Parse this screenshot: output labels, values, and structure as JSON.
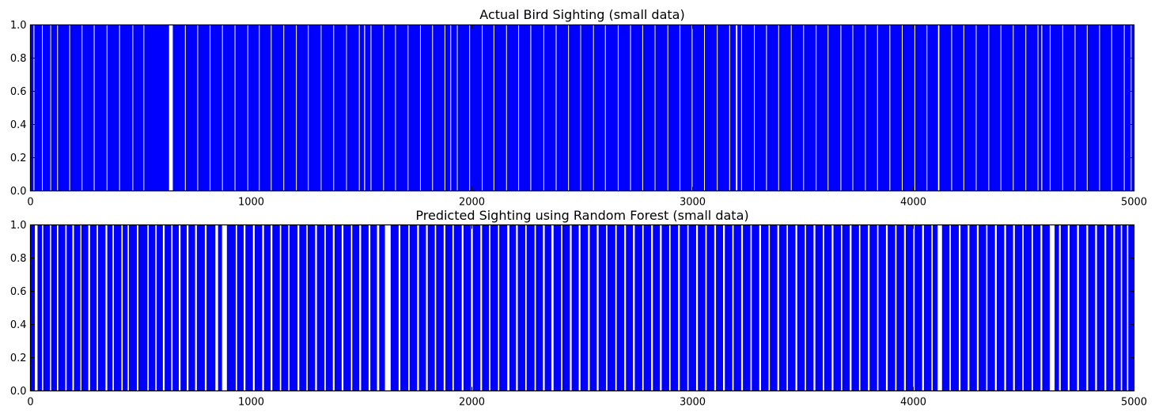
{
  "chart_data": [
    {
      "type": "bar",
      "title": "Actual Bird Sighting (small data)",
      "xlim": [
        0,
        5000
      ],
      "ylim": [
        0,
        1
      ],
      "xticks": [
        "0",
        "1000",
        "2000",
        "3000",
        "4000",
        "5000"
      ],
      "yticks": [
        "0.0",
        "0.2",
        "0.4",
        "0.6",
        "0.8",
        "1.0"
      ],
      "bar_color": "#0000ff",
      "series": [
        {
          "name": "actual",
          "value": 1
        }
      ],
      "zero_ranges": [
        [
          14,
          17
        ],
        [
          52,
          53
        ],
        [
          90,
          92
        ],
        [
          121,
          124
        ],
        [
          176,
          177
        ],
        [
          232,
          234
        ],
        [
          287,
          289
        ],
        [
          345,
          347
        ],
        [
          402,
          404
        ],
        [
          462,
          465
        ],
        [
          512,
          514
        ],
        [
          628,
          645
        ],
        [
          700,
          701
        ],
        [
          756,
          758
        ],
        [
          812,
          815
        ],
        [
          868,
          869
        ],
        [
          925,
          927
        ],
        [
          983,
          986
        ],
        [
          1035,
          1037
        ],
        [
          1089,
          1092
        ],
        [
          1146,
          1147
        ],
        [
          1203,
          1205
        ],
        [
          1257,
          1260
        ],
        [
          1315,
          1317
        ],
        [
          1372,
          1374
        ],
        [
          1430,
          1433
        ],
        [
          1488,
          1490
        ],
        [
          1512,
          1516
        ],
        [
          1541,
          1543
        ],
        [
          1598,
          1601
        ],
        [
          1652,
          1654
        ],
        [
          1709,
          1712
        ],
        [
          1765,
          1767
        ],
        [
          1820,
          1822
        ],
        [
          1876,
          1879
        ],
        [
          1902,
          1906
        ],
        [
          1932,
          1935
        ],
        [
          1988,
          1990
        ],
        [
          2045,
          2048
        ],
        [
          2098,
          2100
        ],
        [
          2155,
          2158
        ],
        [
          2210,
          2213
        ],
        [
          2265,
          2267
        ],
        [
          2324,
          2326
        ],
        [
          2380,
          2383
        ],
        [
          2436,
          2438
        ],
        [
          2491,
          2494
        ],
        [
          2549,
          2551
        ],
        [
          2603,
          2605
        ],
        [
          2661,
          2664
        ],
        [
          2717,
          2719
        ],
        [
          2772,
          2775
        ],
        [
          2828,
          2830
        ],
        [
          2886,
          2889
        ],
        [
          2941,
          2943
        ],
        [
          2996,
          2999
        ],
        [
          3052,
          3054
        ],
        [
          3110,
          3112
        ],
        [
          3166,
          3169
        ],
        [
          3196,
          3203
        ],
        [
          3220,
          3222
        ],
        [
          3278,
          3281
        ],
        [
          3333,
          3335
        ],
        [
          3388,
          3391
        ],
        [
          3445,
          3447
        ],
        [
          3501,
          3504
        ],
        [
          3558,
          3560
        ],
        [
          3612,
          3615
        ],
        [
          3670,
          3672
        ],
        [
          3724,
          3726
        ],
        [
          3781,
          3784
        ],
        [
          3836,
          3838
        ],
        [
          3892,
          3895
        ],
        [
          3948,
          3950
        ],
        [
          4005,
          4008
        ],
        [
          4060,
          4062
        ],
        [
          4112,
          4118
        ],
        [
          4172,
          4174
        ],
        [
          4227,
          4229
        ],
        [
          4283,
          4286
        ],
        [
          4340,
          4343
        ],
        [
          4395,
          4397
        ],
        [
          4451,
          4454
        ],
        [
          4508,
          4510
        ],
        [
          4563,
          4566
        ],
        [
          4580,
          4584
        ],
        [
          4618,
          4620
        ],
        [
          4675,
          4677
        ],
        [
          4731,
          4734
        ],
        [
          4786,
          4788
        ],
        [
          4842,
          4845
        ],
        [
          4897,
          4899
        ],
        [
          4954,
          4957
        ],
        [
          4985,
          4987
        ]
      ]
    },
    {
      "type": "bar",
      "title": "Predicted Sighting using Random Forest (small data)",
      "xlim": [
        0,
        5000
      ],
      "ylim": [
        0,
        1
      ],
      "xticks": [
        "0",
        "1000",
        "2000",
        "3000",
        "4000",
        "5000"
      ],
      "yticks": [
        "0.0",
        "0.2",
        "0.4",
        "0.6",
        "0.8",
        "1.0"
      ],
      "bar_color": "#0000ff",
      "series": [
        {
          "name": "predicted",
          "value": 1
        }
      ],
      "zero_ranges": [
        [
          20,
          32
        ],
        [
          52,
          58
        ],
        [
          88,
          94
        ],
        [
          120,
          126
        ],
        [
          158,
          164
        ],
        [
          190,
          197
        ],
        [
          226,
          231
        ],
        [
          262,
          270
        ],
        [
          300,
          306
        ],
        [
          340,
          348
        ],
        [
          372,
          378
        ],
        [
          412,
          418
        ],
        [
          440,
          446
        ],
        [
          482,
          489
        ],
        [
          530,
          536
        ],
        [
          566,
          572
        ],
        [
          600,
          608
        ],
        [
          638,
          644
        ],
        [
          672,
          680
        ],
        [
          708,
          716
        ],
        [
          746,
          754
        ],
        [
          790,
          798
        ],
        [
          838,
          850
        ],
        [
          868,
          890
        ],
        [
          930,
          936
        ],
        [
          966,
          974
        ],
        [
          1008,
          1016
        ],
        [
          1050,
          1058
        ],
        [
          1088,
          1096
        ],
        [
          1130,
          1136
        ],
        [
          1168,
          1174
        ],
        [
          1210,
          1218
        ],
        [
          1250,
          1256
        ],
        [
          1290,
          1298
        ],
        [
          1332,
          1338
        ],
        [
          1370,
          1378
        ],
        [
          1410,
          1418
        ],
        [
          1452,
          1458
        ],
        [
          1490,
          1498
        ],
        [
          1532,
          1540
        ],
        [
          1570,
          1580
        ],
        [
          1606,
          1632
        ],
        [
          1668,
          1676
        ],
        [
          1712,
          1718
        ],
        [
          1752,
          1760
        ],
        [
          1792,
          1800
        ],
        [
          1832,
          1838
        ],
        [
          1872,
          1880
        ],
        [
          1912,
          1918
        ],
        [
          1954,
          1962
        ],
        [
          1996,
          2004
        ],
        [
          2038,
          2046
        ],
        [
          2078,
          2084
        ],
        [
          2118,
          2124
        ],
        [
          2160,
          2170
        ],
        [
          2200,
          2208
        ],
        [
          2242,
          2248
        ],
        [
          2284,
          2290
        ],
        [
          2322,
          2330
        ],
        [
          2360,
          2370
        ],
        [
          2404,
          2410
        ],
        [
          2444,
          2452
        ],
        [
          2484,
          2492
        ],
        [
          2526,
          2534
        ],
        [
          2566,
          2574
        ],
        [
          2608,
          2614
        ],
        [
          2650,
          2656
        ],
        [
          2690,
          2698
        ],
        [
          2730,
          2738
        ],
        [
          2772,
          2778
        ],
        [
          2812,
          2820
        ],
        [
          2852,
          2860
        ],
        [
          2894,
          2900
        ],
        [
          2934,
          2942
        ],
        [
          2976,
          2982
        ],
        [
          3016,
          3024
        ],
        [
          3058,
          3064
        ],
        [
          3098,
          3106
        ],
        [
          3138,
          3146
        ],
        [
          3180,
          3186
        ],
        [
          3220,
          3228
        ],
        [
          3262,
          3268
        ],
        [
          3302,
          3310
        ],
        [
          3344,
          3350
        ],
        [
          3384,
          3392
        ],
        [
          3426,
          3432
        ],
        [
          3466,
          3474
        ],
        [
          3508,
          3514
        ],
        [
          3548,
          3556
        ],
        [
          3590,
          3596
        ],
        [
          3630,
          3638
        ],
        [
          3672,
          3678
        ],
        [
          3712,
          3720
        ],
        [
          3754,
          3760
        ],
        [
          3794,
          3802
        ],
        [
          3836,
          3842
        ],
        [
          3876,
          3884
        ],
        [
          3918,
          3924
        ],
        [
          3958,
          3966
        ],
        [
          4000,
          4006
        ],
        [
          4040,
          4048
        ],
        [
          4082,
          4088
        ],
        [
          4110,
          4130
        ],
        [
          4164,
          4170
        ],
        [
          4206,
          4214
        ],
        [
          4246,
          4254
        ],
        [
          4288,
          4296
        ],
        [
          4330,
          4336
        ],
        [
          4370,
          4378
        ],
        [
          4412,
          4420
        ],
        [
          4452,
          4460
        ],
        [
          4494,
          4500
        ],
        [
          4536,
          4542
        ],
        [
          4576,
          4584
        ],
        [
          4618,
          4640
        ],
        [
          4660,
          4668
        ],
        [
          4700,
          4708
        ],
        [
          4742,
          4750
        ],
        [
          4784,
          4792
        ],
        [
          4824,
          4832
        ],
        [
          4866,
          4874
        ],
        [
          4906,
          4914
        ],
        [
          4940,
          4946
        ],
        [
          4968,
          4974
        ]
      ]
    }
  ]
}
